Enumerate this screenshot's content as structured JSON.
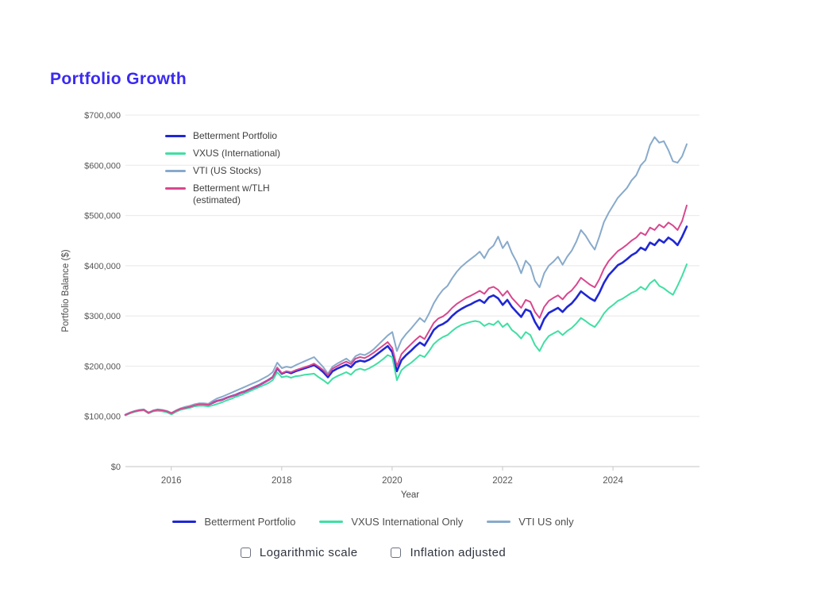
{
  "page": {
    "title": "Portfolio Growth",
    "title_color": "#3a2af0",
    "background": "#ffffff"
  },
  "chart_data": {
    "type": "line",
    "title": "Portfolio Growth",
    "xlabel": "Year",
    "ylabel": "Portfolio Balance ($)",
    "xlim": [
      2015.17,
      2025.48
    ],
    "ylim": [
      0,
      700000
    ],
    "x_ticks": [
      2016,
      2018,
      2020,
      2022,
      2024
    ],
    "x_tick_labels": [
      "2016",
      "2018",
      "2020",
      "2022",
      "2024"
    ],
    "y_ticks": [
      0,
      100000,
      200000,
      300000,
      400000,
      500000,
      600000,
      700000
    ],
    "y_tick_labels": [
      "$0",
      "$100,000",
      "$200,000",
      "$300,000",
      "$400,000",
      "$500,000",
      "$600,000",
      "$700,000"
    ],
    "grid": true,
    "grid_color": "#e8e8e8",
    "axis_color": "#c6c6c6",
    "tick_text_color": "#565656",
    "legend_position": "upper-left-inside",
    "x_start": 2015.17,
    "x_step": 0.0833333,
    "units": "values_k are thousands of USD",
    "series": [
      {
        "name": "Betterment Portfolio",
        "color": "#1f27d4",
        "width": 2.6,
        "values_k": [
          103,
          107,
          110,
          112,
          113,
          107,
          111,
          113,
          112,
          110,
          106,
          111,
          115,
          117,
          119,
          122,
          124,
          124,
          123,
          127,
          131,
          133,
          137,
          140,
          143,
          147,
          150,
          154,
          158,
          162,
          167,
          172,
          178,
          196,
          185,
          189,
          186,
          190,
          193,
          196,
          199,
          202,
          196,
          188,
          178,
          190,
          195,
          199,
          203,
          198,
          208,
          211,
          209,
          213,
          219,
          226,
          233,
          240,
          228,
          190,
          212,
          222,
          230,
          239,
          247,
          241,
          256,
          272,
          280,
          284,
          290,
          300,
          308,
          314,
          319,
          323,
          328,
          332,
          326,
          337,
          341,
          335,
          322,
          332,
          318,
          308,
          298,
          313,
          309,
          288,
          273,
          294,
          306,
          311,
          316,
          308,
          318,
          325,
          336,
          349,
          342,
          335,
          330,
          346,
          366,
          381,
          391,
          401,
          406,
          413,
          421,
          426,
          436,
          431,
          446,
          441,
          452,
          446,
          456,
          450,
          441,
          458,
          478
        ]
      },
      {
        "name": "VXUS (International)",
        "color": "#40dfa3",
        "width": 2,
        "values_k": [
          102,
          106,
          109,
          111,
          112,
          106,
          110,
          111,
          110,
          108,
          104,
          109,
          113,
          115,
          117,
          120,
          121,
          121,
          120,
          122,
          125,
          128,
          132,
          135,
          139,
          142,
          146,
          150,
          154,
          158,
          162,
          166,
          172,
          188,
          178,
          180,
          177,
          180,
          181,
          183,
          184,
          185,
          178,
          172,
          165,
          175,
          180,
          184,
          188,
          183,
          192,
          195,
          192,
          196,
          201,
          207,
          214,
          222,
          218,
          172,
          192,
          200,
          206,
          214,
          222,
          218,
          230,
          244,
          252,
          258,
          262,
          270,
          277,
          282,
          285,
          288,
          290,
          288,
          280,
          285,
          282,
          290,
          278,
          285,
          272,
          265,
          255,
          268,
          262,
          242,
          230,
          248,
          260,
          265,
          270,
          262,
          270,
          276,
          285,
          296,
          290,
          283,
          278,
          290,
          305,
          315,
          322,
          330,
          334,
          340,
          346,
          350,
          358,
          352,
          365,
          372,
          360,
          355,
          348,
          342,
          360,
          380,
          403
        ]
      },
      {
        "name": "VTI (US Stocks)",
        "color": "#88aacb",
        "width": 2,
        "values_k": [
          103,
          108,
          111,
          113,
          114,
          107,
          112,
          114,
          113,
          111,
          107,
          112,
          116,
          119,
          121,
          124,
          126,
          126,
          125,
          131,
          136,
          139,
          143,
          147,
          151,
          155,
          159,
          163,
          167,
          171,
          176,
          181,
          188,
          207,
          196,
          199,
          197,
          202,
          206,
          210,
          214,
          218,
          208,
          198,
          185,
          199,
          205,
          210,
          215,
          208,
          220,
          224,
          222,
          227,
          234,
          243,
          252,
          261,
          268,
          230,
          252,
          264,
          274,
          285,
          296,
          288,
          305,
          325,
          340,
          352,
          360,
          375,
          388,
          398,
          406,
          413,
          420,
          428,
          415,
          432,
          440,
          458,
          435,
          448,
          425,
          408,
          385,
          410,
          400,
          370,
          357,
          385,
          400,
          408,
          418,
          402,
          418,
          430,
          448,
          471,
          460,
          445,
          432,
          458,
          487,
          505,
          520,
          535,
          545,
          555,
          570,
          580,
          600,
          610,
          640,
          656,
          645,
          648,
          630,
          608,
          605,
          618,
          642
        ]
      },
      {
        "name": "Betterment w/TLH (estimated)",
        "color": "#d8478e",
        "width": 2,
        "values_k": [
          103,
          107,
          110,
          112,
          113,
          107,
          111,
          113,
          112,
          110,
          106,
          111,
          115,
          117,
          119,
          122,
          124,
          124,
          123,
          127,
          131,
          133,
          137,
          140,
          143,
          147,
          150,
          154,
          158,
          162,
          167,
          172,
          178,
          197,
          186,
          190,
          188,
          192,
          195,
          198,
          201,
          205,
          199,
          192,
          182,
          195,
          200,
          205,
          209,
          204,
          215,
          218,
          216,
          221,
          227,
          234,
          241,
          248,
          236,
          200,
          224,
          234,
          243,
          252,
          260,
          254,
          270,
          286,
          295,
          299,
          306,
          316,
          324,
          330,
          336,
          340,
          345,
          350,
          344,
          355,
          358,
          352,
          340,
          350,
          336,
          326,
          316,
          332,
          328,
          308,
          296,
          318,
          330,
          336,
          341,
          333,
          344,
          351,
          362,
          376,
          369,
          362,
          357,
          373,
          394,
          409,
          419,
          429,
          435,
          442,
          450,
          456,
          466,
          461,
          476,
          471,
          482,
          476,
          486,
          480,
          471,
          489,
          520
        ]
      }
    ]
  },
  "inner_legend": {
    "items": [
      {
        "label": "Betterment Portfolio",
        "label2": "",
        "color": "#1f27d4"
      },
      {
        "label": "VXUS (International)",
        "label2": "",
        "color": "#40dfa3"
      },
      {
        "label": "VTI (US Stocks)",
        "label2": "",
        "color": "#88aacb"
      },
      {
        "label": "Betterment w/TLH",
        "label2": "(estimated)",
        "color": "#d8478e"
      }
    ]
  },
  "bottom_legend": {
    "items": [
      {
        "label": "Betterment Portfolio",
        "color": "#1f27d4"
      },
      {
        "label": "VXUS International Only",
        "color": "#40dfa3"
      },
      {
        "label": "VTI US only",
        "color": "#88aacb"
      }
    ]
  },
  "controls": {
    "checkboxes": [
      {
        "label": "Logarithmic scale",
        "checked": false
      },
      {
        "label": "Inflation adjusted",
        "checked": false
      }
    ]
  }
}
